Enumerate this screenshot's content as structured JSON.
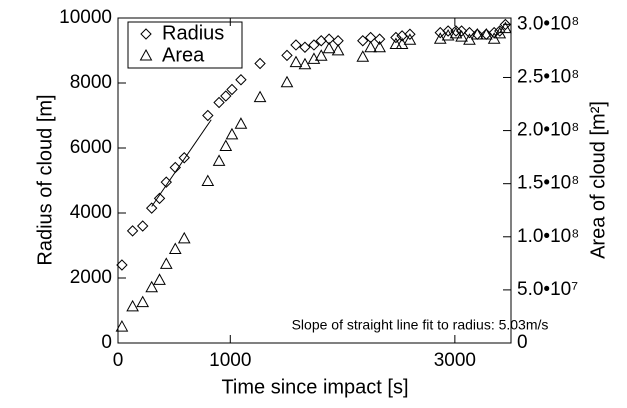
{
  "chart_data": {
    "type": "scatter",
    "x_label": "Time since impact [s]",
    "y_label": "Radius of cloud [m]",
    "y2_label": "Area of cloud [m²]",
    "annotation": "Slope of straight line fit to radius:  5.03m/s",
    "xlim": [
      0,
      3500
    ],
    "xticks": [
      0,
      1000,
      3000
    ],
    "ylim": [
      0,
      10000
    ],
    "yticks": [
      0,
      2000,
      4000,
      6000,
      8000,
      10000
    ],
    "y2lim": [
      0,
      306000000
    ],
    "y2ticks": [
      0,
      {
        "value": 50000000,
        "label": "5.0•10⁷"
      },
      {
        "value": 100000000,
        "label": "1.0•10⁸"
      },
      {
        "value": 150000000,
        "label": "1.5•10⁸"
      },
      {
        "value": 200000000,
        "label": "2.0•10⁸"
      },
      {
        "value": 250000000,
        "label": "2.5•10⁸"
      },
      {
        "value": 300000000,
        "label": "3.0•10⁸"
      }
    ],
    "x": [
      35,
      130,
      220,
      300,
      370,
      430,
      510,
      590,
      800,
      900,
      960,
      1015,
      1095,
      1265,
      1505,
      1585,
      1665,
      1745,
      1810,
      1880,
      1960,
      2180,
      2250,
      2330,
      2475,
      2530,
      2600,
      2870,
      2940,
      3010,
      3060,
      3130,
      3200,
      3280,
      3350,
      3400,
      3450
    ],
    "series": [
      {
        "name": "Radius",
        "marker": "diamond",
        "color": "#000000",
        "values": [
          2400,
          3450,
          3600,
          4150,
          4450,
          4950,
          5400,
          5700,
          7000,
          7400,
          7600,
          7800,
          8100,
          8600,
          8850,
          9170,
          9100,
          9170,
          9300,
          9350,
          9300,
          9300,
          9400,
          9350,
          9400,
          9450,
          9500,
          9550,
          9600,
          9600,
          9600,
          9550,
          9500,
          9500,
          9550,
          9600,
          9800
        ]
      },
      {
        "name": "Area",
        "marker": "triangle",
        "color": "#000000",
        "axis": "y2",
        "values": [
          15000000,
          34000000,
          38000000,
          52000000,
          59000000,
          74000000,
          88000000,
          98000000,
          152000000,
          171000000,
          185000000,
          196000000,
          206000000,
          231000000,
          245000000,
          264000000,
          262000000,
          267000000,
          270000000,
          277000000,
          275000000,
          269000000,
          278000000,
          278000000,
          281000000,
          281000000,
          285000000,
          286000000,
          289000000,
          291000000,
          288000000,
          285000000,
          290000000,
          290000000,
          286000000,
          291000000,
          296000000
        ]
      }
    ],
    "fit_line": {
      "x": [
        300,
        830
      ],
      "values": [
        4200,
        6870
      ]
    }
  }
}
